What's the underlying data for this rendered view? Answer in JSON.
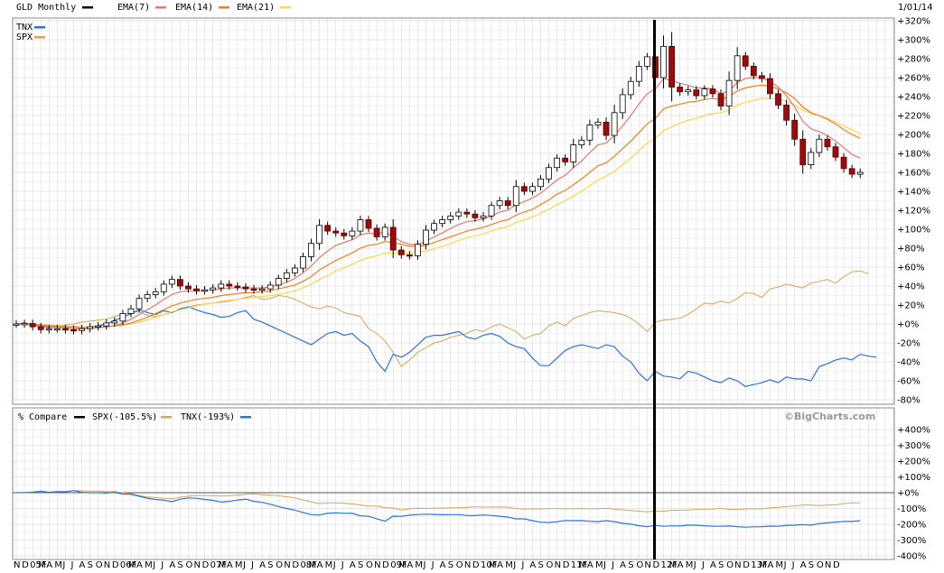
{
  "chart_data": [
    {
      "type": "candlestick",
      "title": "GLD Monthly",
      "date_label": "1/01/14",
      "y_unit": "percent",
      "ylim": [
        -80,
        320
      ],
      "y_ticks": [
        "+320%",
        "+300%",
        "+280%",
        "+260%",
        "+240%",
        "+220%",
        "+200%",
        "+180%",
        "+160%",
        "+140%",
        "+120%",
        "+100%",
        "+80%",
        "+60%",
        "+40%",
        "+20%",
        "+0%",
        "-20%",
        "-40%",
        "-60%",
        "-80%"
      ],
      "grid": true,
      "legend": [
        {
          "name": "GLD Monthly",
          "color": "#000000"
        },
        {
          "name": "EMA(7)",
          "color": "#e07a6c"
        },
        {
          "name": "EMA(14)",
          "color": "#f07f1e"
        },
        {
          "name": "EMA(21)",
          "color": "#f5d84a"
        }
      ],
      "overlay_legend": [
        {
          "name": "TNX",
          "color": "#2a72e6"
        },
        {
          "name": "SPX",
          "color": "#d6a35a"
        }
      ],
      "x_labels": [
        "N",
        "D",
        "05F",
        "M",
        "A",
        "M",
        "J",
        "J",
        "A",
        "S",
        "O",
        "N",
        "D",
        "06F",
        "M",
        "A",
        "M",
        "J",
        "J",
        "A",
        "S",
        "O",
        "N",
        "D",
        "07F",
        "M",
        "A",
        "M",
        "J",
        "J",
        "A",
        "S",
        "O",
        "N",
        "D",
        "08F",
        "M",
        "A",
        "M",
        "J",
        "J",
        "A",
        "S",
        "O",
        "N",
        "D",
        "09F",
        "M",
        "A",
        "M",
        "J",
        "J",
        "A",
        "S",
        "O",
        "N",
        "D",
        "10F",
        "M",
        "A",
        "M",
        "J",
        "J",
        "A",
        "S",
        "O",
        "N",
        "D",
        "11F",
        "M",
        "A",
        "M",
        "J",
        "J",
        "A",
        "S",
        "O",
        "N",
        "D",
        "12F",
        "M",
        "A",
        "M",
        "J",
        "J",
        "A",
        "S",
        "O",
        "N",
        "D",
        "13F",
        "M",
        "A",
        "M",
        "J",
        "J",
        "A",
        "S",
        "O",
        "N",
        "D"
      ],
      "gld_close": [
        0,
        0.5,
        -3,
        -6,
        -5,
        -5,
        -6,
        -7,
        -5,
        -3,
        -2,
        1,
        3,
        11,
        16,
        27,
        31,
        34,
        42,
        47,
        40,
        37,
        35,
        36,
        38,
        42,
        40,
        39,
        37,
        36,
        37,
        41,
        48,
        54,
        59,
        71,
        85,
        104,
        98,
        96,
        93,
        98,
        110,
        101,
        92,
        102,
        78,
        73,
        72,
        84,
        99,
        106,
        110,
        114,
        118,
        116,
        112,
        114,
        125,
        130,
        125,
        145,
        140,
        145,
        153,
        165,
        175,
        171,
        189,
        194,
        210,
        213,
        199,
        223,
        242,
        256,
        272,
        282,
        260,
        293,
        250,
        245,
        247,
        241,
        248,
        243,
        230,
        257,
        283,
        272,
        262,
        259,
        243,
        231,
        215,
        195,
        168,
        181,
        195,
        187,
        176,
        164,
        158,
        160
      ],
      "ema7": [
        0,
        0,
        -1,
        -2,
        -3,
        -4,
        -4,
        -5,
        -5,
        -5,
        -4,
        -3,
        -2,
        1,
        5,
        10,
        15,
        20,
        26,
        31,
        34,
        35,
        35,
        35,
        36,
        37,
        38,
        38,
        38,
        38,
        38,
        39,
        41,
        44,
        48,
        54,
        61,
        70,
        77,
        83,
        86,
        89,
        94,
        96,
        95,
        97,
        92,
        87,
        84,
        84,
        87,
        92,
        96,
        101,
        105,
        108,
        109,
        111,
        114,
        118,
        120,
        126,
        129,
        133,
        138,
        145,
        152,
        157,
        165,
        172,
        181,
        189,
        191,
        199,
        209,
        220,
        232,
        243,
        248,
        259,
        257,
        254,
        252,
        249,
        249,
        248,
        243,
        246,
        255,
        259,
        260,
        260,
        256,
        250,
        241,
        229,
        214,
        206,
        203,
        199,
        193,
        186,
        179,
        175
      ],
      "ema14": [
        0,
        0,
        -0.5,
        -1,
        -2,
        -2.5,
        -3,
        -3.5,
        -4,
        -4,
        -4,
        -3,
        -2,
        -1,
        1,
        4,
        7,
        11,
        15,
        19,
        22,
        24,
        26,
        27,
        28,
        30,
        31,
        32,
        33,
        33,
        34,
        35,
        37,
        39,
        41,
        45,
        50,
        57,
        62,
        67,
        71,
        75,
        80,
        83,
        84,
        87,
        86,
        84,
        82,
        82,
        83,
        86,
        89,
        92,
        95,
        98,
        100,
        102,
        105,
        108,
        110,
        115,
        118,
        121,
        126,
        131,
        137,
        141,
        147,
        153,
        160,
        167,
        170,
        177,
        185,
        193,
        202,
        211,
        217,
        227,
        230,
        232,
        234,
        235,
        237,
        238,
        237,
        240,
        246,
        249,
        251,
        252,
        251,
        248,
        244,
        238,
        229,
        223,
        220,
        216,
        211,
        205,
        200,
        196
      ],
      "ema21": [
        0,
        0,
        0,
        -0.5,
        -1,
        -1.5,
        -2,
        -2.5,
        -3,
        -3,
        -3,
        -2.5,
        -2,
        -1,
        0,
        2,
        4,
        7,
        10,
        13,
        15,
        17,
        19,
        21,
        22,
        24,
        25,
        26,
        27,
        28,
        29,
        30,
        31,
        33,
        35,
        38,
        42,
        47,
        51,
        56,
        59,
        63,
        67,
        70,
        72,
        75,
        75,
        75,
        75,
        76,
        77,
        79,
        82,
        85,
        88,
        91,
        93,
        95,
        98,
        101,
        103,
        107,
        110,
        113,
        117,
        121,
        126,
        130,
        135,
        140,
        146,
        152,
        156,
        161,
        168,
        175,
        183,
        191,
        196,
        204,
        208,
        212,
        215,
        217,
        220,
        222,
        223,
        226,
        231,
        234,
        236,
        238,
        238,
        237,
        235,
        231,
        226,
        222,
        220,
        217,
        213,
        209,
        205,
        201
      ],
      "spx_rel": [
        0,
        1,
        0,
        -2,
        -3,
        -2,
        -1,
        0,
        2,
        3,
        4,
        5,
        8,
        10,
        12,
        13,
        9,
        8,
        10,
        12,
        15,
        18,
        20,
        21,
        22,
        23,
        24,
        26,
        28,
        30,
        26,
        27,
        30,
        29,
        26,
        22,
        18,
        16,
        19,
        17,
        12,
        10,
        8,
        -5,
        -10,
        -18,
        -30,
        -45,
        -38,
        -30,
        -25,
        -20,
        -18,
        -14,
        -12,
        -10,
        -6,
        -8,
        -3,
        0,
        -4,
        -8,
        -16,
        -12,
        -10,
        -2,
        2,
        -2,
        6,
        9,
        12,
        14,
        13,
        12,
        10,
        6,
        0,
        -8,
        2,
        4,
        5,
        6,
        10,
        16,
        22,
        21,
        24,
        22,
        27,
        33,
        32,
        28,
        37,
        39,
        42,
        40,
        38,
        43,
        45,
        47,
        43,
        50,
        55,
        56,
        53
      ],
      "tnx_rel": [
        0,
        1,
        -2,
        -2,
        -4,
        -2,
        -4,
        -2,
        -4,
        -3,
        -2,
        0,
        4,
        7,
        11,
        15,
        12,
        10,
        14,
        12,
        16,
        18,
        15,
        12,
        10,
        7,
        8,
        12,
        14,
        5,
        2,
        -2,
        -6,
        -10,
        -14,
        -18,
        -22,
        -16,
        -10,
        -8,
        -12,
        -10,
        -18,
        -24,
        -40,
        -50,
        -32,
        -35,
        -30,
        -22,
        -14,
        -12,
        -12,
        -10,
        -8,
        -14,
        -16,
        -12,
        -10,
        -13,
        -20,
        -24,
        -26,
        -36,
        -44,
        -44,
        -36,
        -28,
        -24,
        -22,
        -24,
        -26,
        -22,
        -24,
        -34,
        -40,
        -52,
        -60,
        -50,
        -55,
        -56,
        -58,
        -50,
        -52,
        -56,
        -60,
        -62,
        -57,
        -60,
        -66,
        -64,
        -62,
        -59,
        -62,
        -56,
        -58,
        -58,
        -60,
        -45,
        -42,
        -38,
        -36,
        -38,
        -32,
        -34,
        -35
      ]
    },
    {
      "type": "line",
      "title": "% Compare",
      "ylim": [
        -400,
        400
      ],
      "y_ticks": [
        "+400%",
        "+300%",
        "+200%",
        "+100%",
        "+0%",
        "-100%",
        "-200%",
        "-300%",
        "-400%"
      ],
      "legend": [
        {
          "name": "% Compare",
          "color": "#000000"
        },
        {
          "name": "SPX(-105.5%)",
          "color": "#d6a35a"
        },
        {
          "name": "TNX(-193%)",
          "color": "#2a72e6"
        }
      ],
      "watermark": "©BigCharts.com"
    }
  ]
}
